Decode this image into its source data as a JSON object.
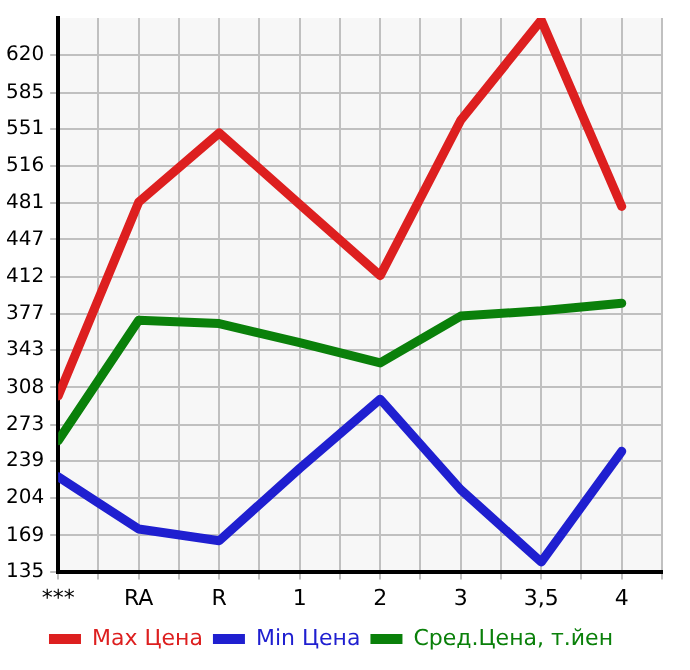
{
  "chart_data": {
    "type": "line",
    "categories": [
      "***",
      "RA",
      "R",
      "1",
      "2",
      "3",
      "3,5",
      "4"
    ],
    "series": [
      {
        "name": "Max Цена",
        "color": "#dd1f1f",
        "values": [
          300,
          482,
          547,
          480,
          413,
          559,
          653,
          478
        ]
      },
      {
        "name": "Min Цена",
        "color": "#1f1fd0",
        "values": [
          224,
          175,
          164,
          232,
          297,
          212,
          144,
          248
        ]
      },
      {
        "name": "Сред.Цена, т.йен",
        "color": "#0a800a",
        "values": [
          258,
          371,
          368,
          350,
          331,
          375,
          380,
          387
        ]
      }
    ],
    "ylim": [
      135,
      655
    ],
    "yticks": [
      135,
      169,
      204,
      239,
      273,
      308,
      343,
      377,
      412,
      447,
      481,
      516,
      551,
      585,
      620
    ],
    "grid": true,
    "legend": "bottom",
    "marker": "none",
    "line_style": "solid"
  }
}
